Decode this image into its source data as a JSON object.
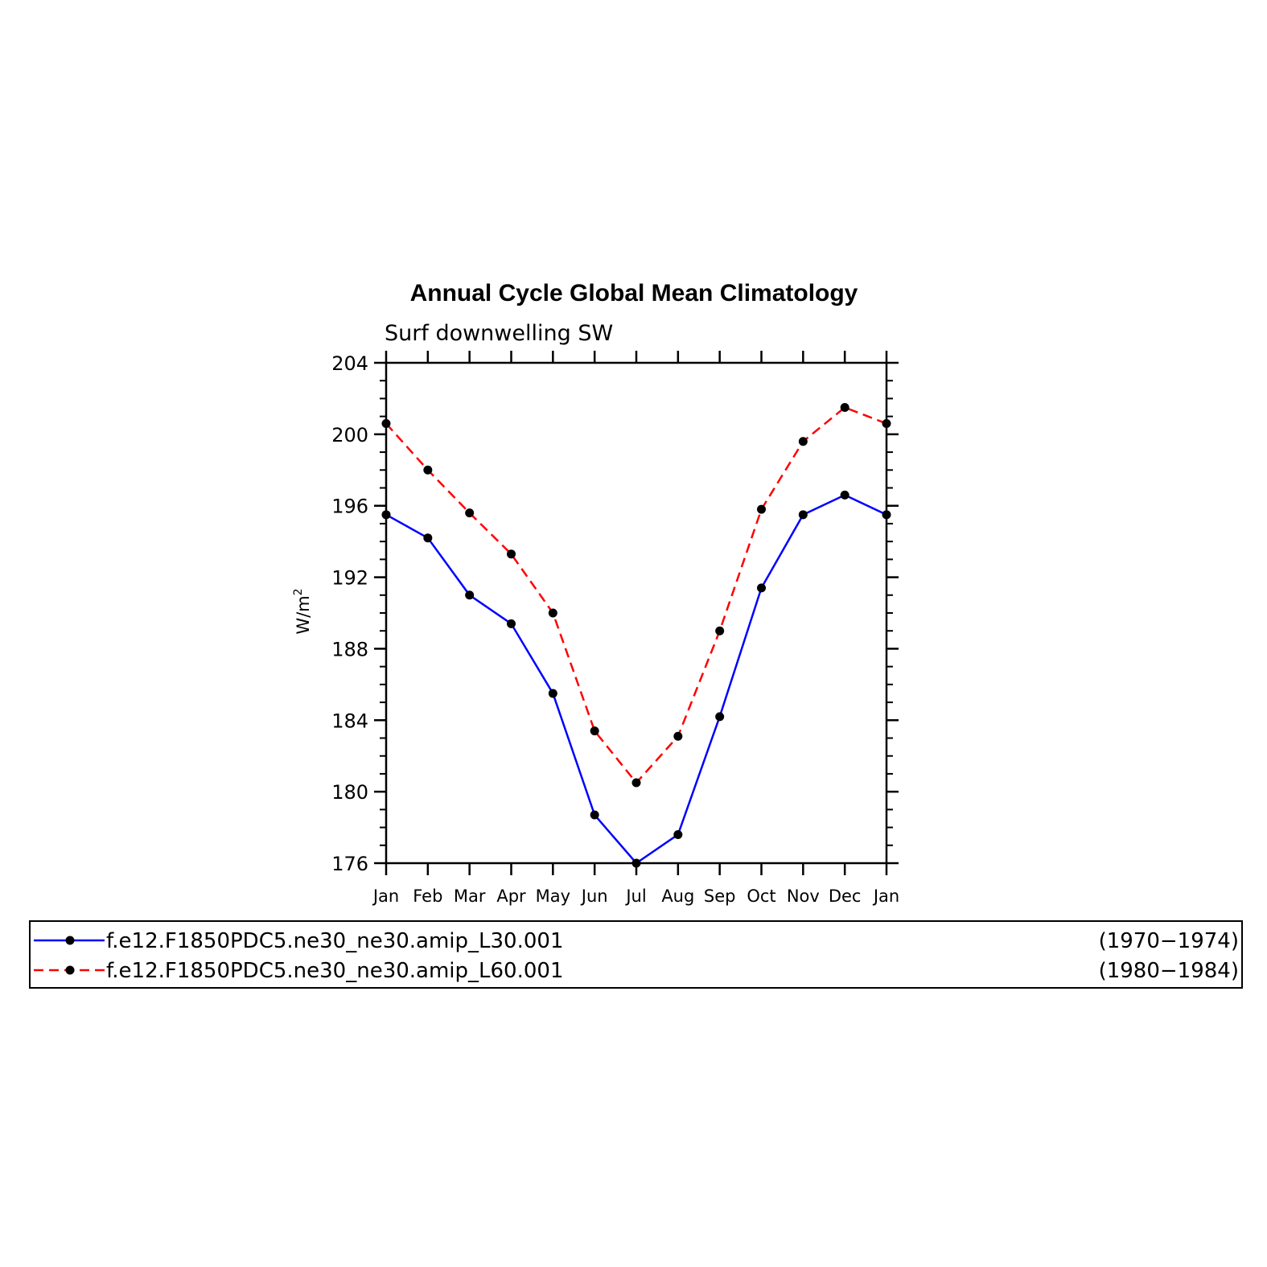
{
  "chart_data": {
    "type": "line",
    "title": "Annual Cycle Global Mean Climatology",
    "subtitle": "Surf downwelling SW",
    "ylabel_base": "W/m",
    "ylabel_sup": "2",
    "ylim": [
      176,
      204
    ],
    "yticks": [
      "176",
      "180",
      "184",
      "188",
      "192",
      "196",
      "200",
      "204"
    ],
    "categories": [
      "Jan",
      "Feb",
      "Mar",
      "Apr",
      "May",
      "Jun",
      "Jul",
      "Aug",
      "Sep",
      "Oct",
      "Nov",
      "Dec",
      "Jan"
    ],
    "grid": false,
    "legend_position": "bottom",
    "series": [
      {
        "name": "f.e12.F1850PDC5.ne30_ne30.amip_L30.001",
        "period": "(1970−1974)",
        "color": "#0000ff",
        "dash": "solid",
        "values": [
          195.5,
          194.2,
          191.0,
          189.4,
          185.5,
          178.7,
          176.0,
          177.6,
          184.2,
          191.4,
          195.5,
          196.6,
          195.5
        ]
      },
      {
        "name": "f.e12.F1850PDC5.ne30_ne30.amip_L60.001",
        "period": "(1980−1984)",
        "color": "#ff0000",
        "dash": "dashed",
        "values": [
          200.6,
          198.0,
          195.6,
          193.3,
          190.0,
          183.4,
          180.5,
          183.1,
          189.0,
          195.8,
          199.6,
          201.5,
          200.6
        ]
      }
    ]
  }
}
